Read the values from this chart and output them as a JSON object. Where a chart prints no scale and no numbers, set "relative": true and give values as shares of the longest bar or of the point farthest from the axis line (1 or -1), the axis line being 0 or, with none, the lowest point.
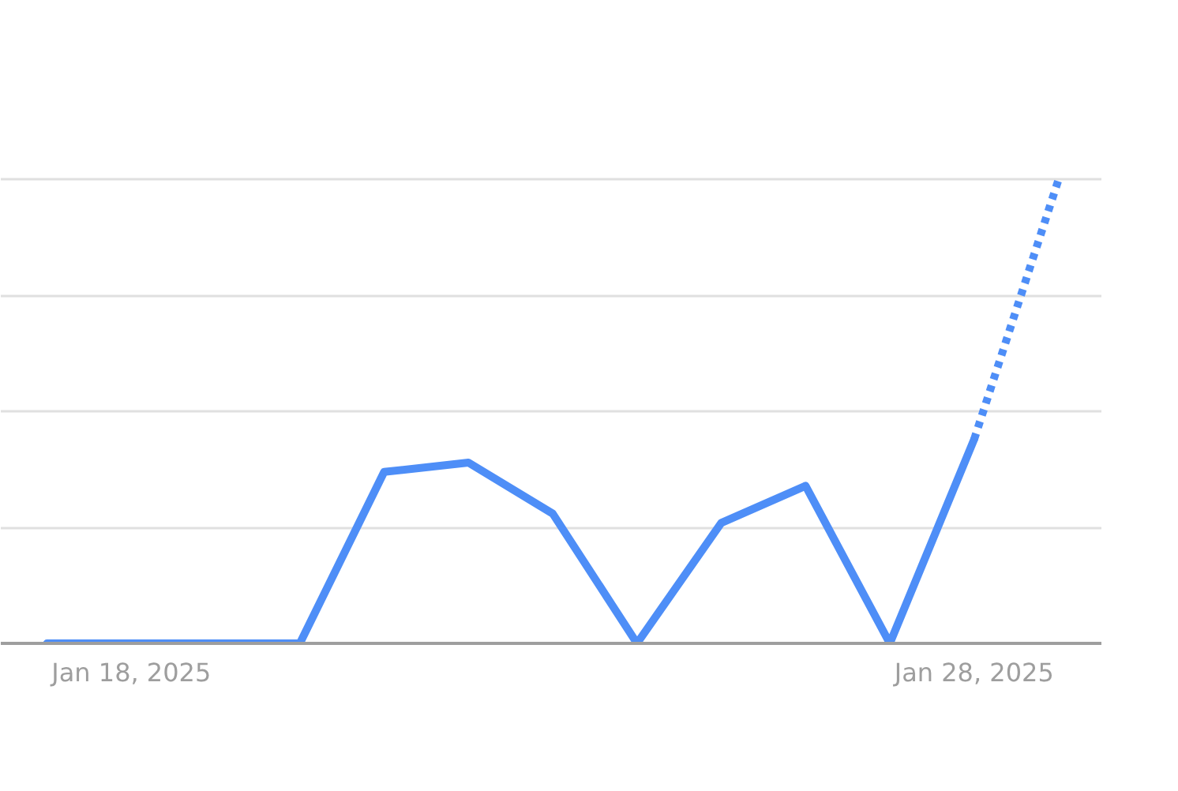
{
  "chart_data": {
    "type": "line",
    "relative": true,
    "xlim": [
      "2025-01-16T10:50",
      "2025-01-29T12:15"
    ],
    "xticks": [
      {
        "value": "2025-01-18",
        "label": "Jan 18, 2025"
      },
      {
        "value": "2025-01-28",
        "label": "Jan 28, 2025"
      }
    ],
    "grid": "y",
    "tick_labels": "x",
    "series": [
      {
        "color": "#4e8ef7",
        "line_style": "solid",
        "x": [
          "2025-01-17",
          "2025-01-18",
          "2025-01-19",
          "2025-01-20",
          "2025-01-21",
          "2025-01-22",
          "2025-01-23",
          "2025-01-24",
          "2025-01-25",
          "2025-01-26",
          "2025-01-27",
          "2025-01-28"
        ],
        "values": [
          0,
          0,
          0,
          0,
          0.37,
          0.39,
          0.28,
          0,
          0.26,
          0.34,
          0,
          0.44
        ]
      },
      {
        "color": "#4e8ef7",
        "line_style": "dotted",
        "x": [
          "2025-01-28",
          "2025-01-29"
        ],
        "values": [
          0.44,
          1
        ]
      }
    ]
  }
}
